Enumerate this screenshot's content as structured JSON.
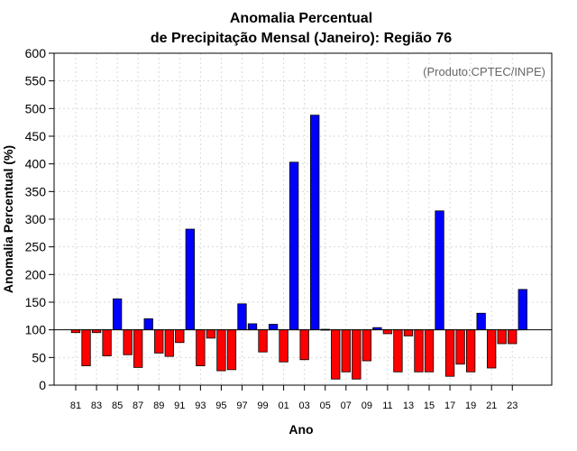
{
  "chart_data": {
    "type": "bar",
    "title_line1": "Anomalia Percentual",
    "title_line2": "de Precipitação Mensal (Janeiro): Região 76",
    "credit": "(Produto:CPTEC/INPE)",
    "xlabel": "Ano",
    "ylabel": "Anomalia Percentual (%)",
    "ylim": [
      0,
      600
    ],
    "yticks": [
      0,
      50,
      100,
      150,
      200,
      250,
      300,
      350,
      400,
      450,
      500,
      550,
      600
    ],
    "baseline": 100,
    "grid": true,
    "colors": {
      "above": "#0000ff",
      "below": "#ff0000",
      "baseline": "#000000"
    },
    "x_tick_labels": [
      "81",
      "83",
      "85",
      "87",
      "89",
      "91",
      "93",
      "95",
      "97",
      "99",
      "01",
      "03",
      "05",
      "07",
      "09",
      "11",
      "13",
      "15",
      "17",
      "19",
      "21",
      "23"
    ],
    "categories": [
      "81",
      "82",
      "83",
      "84",
      "85",
      "86",
      "87",
      "88",
      "89",
      "90",
      "91",
      "92",
      "93",
      "94",
      "95",
      "96",
      "97",
      "98",
      "99",
      "00",
      "01",
      "02",
      "03",
      "04",
      "05",
      "06",
      "07",
      "08",
      "09",
      "10",
      "11",
      "12",
      "13",
      "14",
      "15",
      "16",
      "17",
      "18",
      "19",
      "20",
      "21",
      "22",
      "23",
      "24"
    ],
    "values": [
      95,
      35,
      95,
      53,
      156,
      55,
      32,
      120,
      58,
      52,
      77,
      282,
      35,
      85,
      26,
      28,
      147,
      111,
      60,
      110,
      42,
      403,
      46,
      488,
      101,
      11,
      24,
      11,
      44,
      104,
      93,
      24,
      89,
      24,
      24,
      315,
      16,
      38,
      24,
      130,
      31,
      75,
      75,
      173
    ]
  }
}
